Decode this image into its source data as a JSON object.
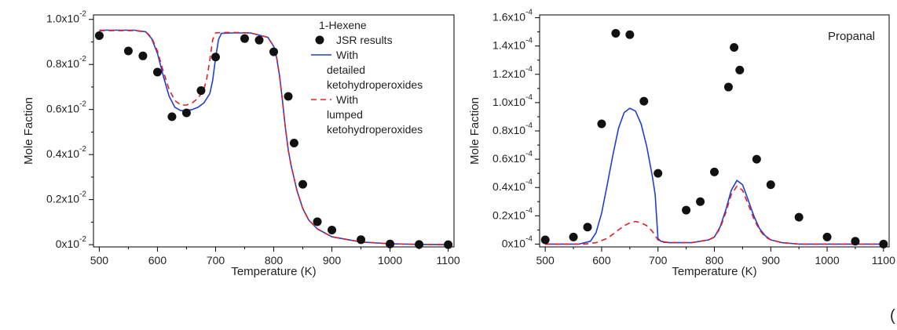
{
  "panel_tag": "(",
  "colors": {
    "detailed": "#1f3fd6",
    "lumped": "#e0202a",
    "points": "#111111",
    "axis": "#000000"
  },
  "chart_data": [
    {
      "type": "line",
      "title": "",
      "xlabel": "Temperature (K)",
      "ylabel": "Mole Faction",
      "xlim": [
        490,
        1110
      ],
      "ylim": [
        -0.0001,
        0.0102
      ],
      "x_ticks": [
        500,
        600,
        700,
        800,
        900,
        1000,
        1100
      ],
      "y_ticks": [
        0,
        0.002,
        0.004,
        0.006,
        0.008,
        0.01
      ],
      "y_tick_labels": [
        "0x10-2",
        "0.2x10-2",
        "0.4x10-2",
        "0.6x10-2",
        "0.8x10-2",
        "1.0x10-2"
      ],
      "grid": false,
      "legend_position": "top-right",
      "legend": {
        "title": "1-Hexene",
        "entries": [
          {
            "key": "points",
            "lines": [
              "JSR results"
            ]
          },
          {
            "key": "detailed",
            "lines": [
              "With",
              "detailed",
              "ketohydroperoxides"
            ]
          },
          {
            "key": "lumped",
            "lines": [
              "With",
              "lumped",
              "ketohydroperoxides"
            ]
          }
        ]
      },
      "series": [
        {
          "key": "points",
          "name": "JSR results",
          "kind": "scatter",
          "x": [
            500,
            550,
            575,
            600,
            625,
            650,
            675,
            700,
            750,
            775,
            800,
            825,
            835,
            850,
            875,
            900,
            950,
            1000,
            1050,
            1100
          ],
          "y": [
            0.00928,
            0.0086,
            0.00838,
            0.00766,
            0.00568,
            0.00585,
            0.00684,
            0.00833,
            0.00915,
            0.00908,
            0.00856,
            0.00658,
            0.00451,
            0.00268,
            0.00102,
            0.00065,
            0.00022,
            3e-05,
            1e-05,
            0.0
          ]
        },
        {
          "key": "detailed",
          "name": "With detailed ketohydroperoxides",
          "kind": "line",
          "x": [
            500,
            560,
            580,
            590,
            600,
            610,
            620,
            630,
            640,
            650,
            660,
            670,
            680,
            690,
            695,
            700,
            705,
            710,
            730,
            760,
            790,
            800,
            805,
            810,
            815,
            820,
            825,
            830,
            840,
            850,
            860,
            875,
            900,
            950,
            1000,
            1050,
            1100
          ],
          "y": [
            0.00952,
            0.00952,
            0.00945,
            0.00915,
            0.0085,
            0.0075,
            0.0066,
            0.0061,
            0.00595,
            0.00595,
            0.006,
            0.0061,
            0.0063,
            0.0067,
            0.0073,
            0.0083,
            0.0091,
            0.00938,
            0.0094,
            0.0094,
            0.0092,
            0.0088,
            0.0083,
            0.0075,
            0.0064,
            0.0052,
            0.0042,
            0.0035,
            0.0024,
            0.0016,
            0.0011,
            0.0007,
            0.00035,
            0.00012,
            4e-05,
            1e-05,
            0.0
          ]
        },
        {
          "key": "lumped",
          "name": "With lumped ketohydroperoxides",
          "kind": "line",
          "dashed": true,
          "x": [
            500,
            560,
            580,
            590,
            600,
            610,
            620,
            630,
            640,
            650,
            660,
            670,
            680,
            685,
            690,
            695,
            700,
            710,
            730,
            760,
            790,
            800,
            805,
            810,
            815,
            820,
            825,
            830,
            840,
            850,
            860,
            875,
            900,
            950,
            1000,
            1050,
            1100
          ],
          "y": [
            0.0095,
            0.0095,
            0.00945,
            0.0092,
            0.0086,
            0.0077,
            0.0069,
            0.0064,
            0.0062,
            0.0062,
            0.0063,
            0.0065,
            0.0069,
            0.0074,
            0.0082,
            0.0091,
            0.0094,
            0.00942,
            0.00942,
            0.0094,
            0.0092,
            0.0088,
            0.0083,
            0.0075,
            0.0064,
            0.0052,
            0.0042,
            0.0035,
            0.0024,
            0.0016,
            0.0011,
            0.0007,
            0.00035,
            0.00012,
            4e-05,
            1e-05,
            0.0
          ]
        }
      ]
    },
    {
      "type": "line",
      "title": "",
      "annotation": "Propanal",
      "xlabel": "Temperature (K)",
      "ylabel": "Mole Faction",
      "xlim": [
        490,
        1110
      ],
      "ylim": [
        -2e-06,
        0.000162
      ],
      "x_ticks": [
        500,
        600,
        700,
        800,
        900,
        1000,
        1100
      ],
      "y_ticks": [
        0,
        2e-05,
        4e-05,
        6e-05,
        8e-05,
        0.0001,
        0.00012,
        0.00014,
        0.00016
      ],
      "y_tick_labels": [
        "0x10-4",
        "0.2x10-4",
        "0.4x10-4",
        "0.6x10-4",
        "0.8x10-4",
        "1.0x10-4",
        "1.2x10-4",
        "1.4x10-4",
        "1.6x10-4"
      ],
      "grid": false,
      "series": [
        {
          "key": "points",
          "name": "",
          "kind": "scatter",
          "x": [
            500,
            550,
            575,
            600,
            625,
            650,
            675,
            700,
            750,
            775,
            800,
            825,
            835,
            845,
            875,
            900,
            950,
            1000,
            1050,
            1100
          ],
          "y": [
            3e-06,
            5e-06,
            1.2e-05,
            8.5e-05,
            0.000149,
            0.000148,
            0.000101,
            5e-05,
            2.4e-05,
            3e-05,
            5.1e-05,
            0.000111,
            0.000139,
            0.000123,
            6e-05,
            4.2e-05,
            1.9e-05,
            5e-06,
            2e-06,
            0.0
          ]
        },
        {
          "key": "detailed",
          "name": "",
          "kind": "line",
          "x": [
            500,
            560,
            580,
            590,
            600,
            610,
            620,
            630,
            640,
            650,
            660,
            670,
            680,
            690,
            695,
            700,
            705,
            720,
            760,
            790,
            800,
            810,
            820,
            830,
            840,
            850,
            860,
            870,
            880,
            890,
            900,
            920,
            950,
            1000,
            1100
          ],
          "y": [
            0.0,
            0.0,
            2e-06,
            8e-06,
            2.2e-05,
            4.2e-05,
            6.3e-05,
            8.2e-05,
            9.3e-05,
            9.6e-05,
            9.4e-05,
            8.5e-05,
            6.9e-05,
            4.8e-05,
            3.5e-05,
            4e-06,
            2e-06,
            1e-06,
            1e-06,
            3e-06,
            5e-06,
            1.2e-05,
            2.4e-05,
            3.8e-05,
            4.5e-05,
            4.2e-05,
            3.1e-05,
            2e-05,
            1.1e-05,
            6e-06,
            3e-06,
            1e-06,
            0.0,
            0.0,
            0.0
          ]
        },
        {
          "key": "lumped",
          "name": "",
          "kind": "line",
          "dashed": true,
          "x": [
            500,
            570,
            590,
            610,
            620,
            630,
            640,
            650,
            660,
            670,
            680,
            690,
            700,
            705,
            720,
            760,
            790,
            800,
            810,
            820,
            830,
            840,
            850,
            860,
            870,
            880,
            890,
            900,
            920,
            950,
            1000,
            1100
          ],
          "y": [
            0.0,
            0.0,
            1e-06,
            4e-06,
            7e-06,
            1e-05,
            1.3e-05,
            1.5e-05,
            1.6e-05,
            1.5e-05,
            1.3e-05,
            9e-06,
            3e-06,
            1.5e-06,
            1e-06,
            1e-06,
            3e-06,
            5e-06,
            1.1e-05,
            2.2e-05,
            3.5e-05,
            4.1e-05,
            3.8e-05,
            2.8e-05,
            1.8e-05,
            1e-05,
            5e-06,
            3e-06,
            1e-06,
            0.0,
            0.0,
            0.0
          ]
        }
      ]
    }
  ]
}
